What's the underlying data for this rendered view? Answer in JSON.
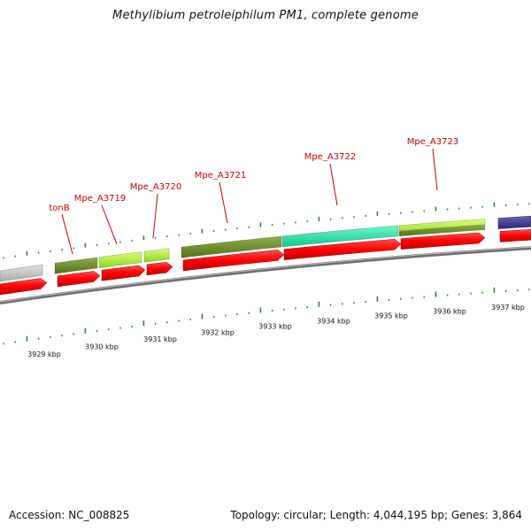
{
  "header": {
    "title": "Methylibium petroleiphilum PM1, complete genome"
  },
  "footer": {
    "accession": "Accession: NC_008825",
    "info": "Topology: circular; Length: 4,044,195 bp; Genes: 3,864"
  },
  "genes": [
    {
      "name": "tonB",
      "color": "#6b8e23"
    },
    {
      "name": "Mpe_A3719",
      "color": "#adff2f"
    },
    {
      "name": "Mpe_A3720",
      "color": "#adff2f"
    },
    {
      "name": "Mpe_A3721",
      "color": "#6b8e23"
    },
    {
      "name": "Mpe_A3722",
      "color": "#1de9a8"
    },
    {
      "name": "Mpe_A3723",
      "color": "#adff2f"
    }
  ],
  "scale": {
    "labels": [
      "3929 kbp",
      "3930 kbp",
      "3931 kbp",
      "3932 kbp",
      "3933 kbp",
      "3934 kbp",
      "3935 kbp",
      "3936 kbp",
      "3937 kbp"
    ]
  },
  "colors": {
    "cds": "#ee0000",
    "backbone": "#808080",
    "tick": "#2e8b2e",
    "label_line": "#cc0000"
  }
}
